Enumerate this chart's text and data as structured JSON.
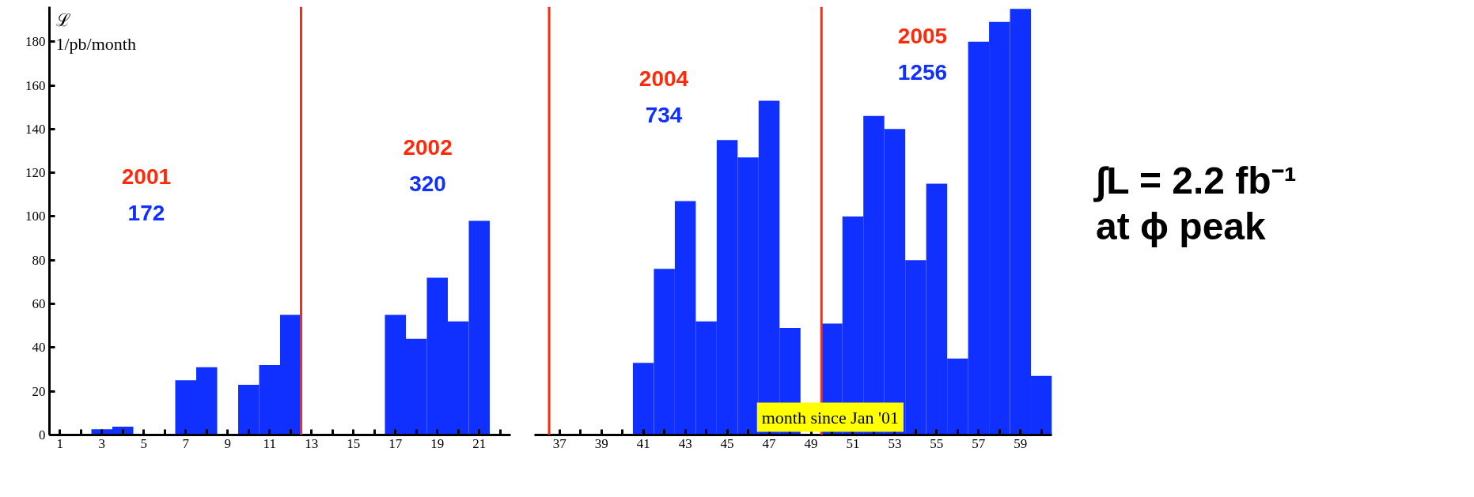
{
  "chart_data": [
    {
      "type": "bar",
      "ylabel": "ℒ\n1/pb/month",
      "x": [
        3,
        4,
        7,
        8,
        10,
        11,
        12,
        17,
        18,
        19,
        20,
        21
      ],
      "series": [
        {
          "color": "#1030ff",
          "values": [
            2.6,
            3.8,
            25,
            31,
            23,
            32,
            55,
            55,
            44,
            72,
            52,
            98
          ]
        }
      ],
      "xlim": [
        0.5,
        22.5
      ],
      "xticks": [
        1,
        {
          "value": 2,
          "label": null
        },
        3,
        {
          "value": 4,
          "label": null
        },
        5,
        {
          "value": 6,
          "label": null
        },
        7,
        {
          "value": 8,
          "label": null
        },
        9,
        {
          "value": 10,
          "label": null
        },
        11,
        {
          "value": 12,
          "label": null
        },
        13,
        {
          "value": 14,
          "label": null
        },
        15,
        {
          "value": 16,
          "label": null
        },
        17,
        {
          "value": 18,
          "label": null
        },
        19,
        {
          "value": 20,
          "label": null
        },
        21,
        {
          "value": 22,
          "label": null
        }
      ],
      "ylim": [
        0,
        196
      ],
      "yticks": [
        0,
        20,
        40,
        60,
        80,
        100,
        120,
        140,
        160,
        180
      ],
      "grid": false,
      "ref_lines": [
        {
          "axis": "x",
          "value": 12.5,
          "color": "#ff2a0a"
        }
      ],
      "annotations": [
        "2001",
        "172",
        "2002",
        "320"
      ]
    },
    {
      "type": "bar",
      "xlabel": "month since Jan '01",
      "x": [
        41,
        42,
        43,
        44,
        45,
        46,
        47,
        48,
        50,
        51,
        52,
        53,
        54,
        55,
        56,
        57,
        58,
        59,
        60
      ],
      "series": [
        {
          "color": "#1030ff",
          "values": [
            33,
            76,
            107,
            52,
            135,
            127,
            153,
            49,
            51,
            100,
            146,
            140,
            80,
            115,
            35,
            180,
            189,
            195,
            27
          ]
        }
      ],
      "xlim": [
        35.8,
        60.5
      ],
      "xticks": [
        37,
        {
          "value": 38,
          "label": null
        },
        39,
        {
          "value": 40,
          "label": null
        },
        41,
        {
          "value": 42,
          "label": null
        },
        43,
        {
          "value": 44,
          "label": null
        },
        45,
        {
          "value": 46,
          "label": null
        },
        47,
        {
          "value": 48,
          "label": null
        },
        49,
        {
          "value": 50,
          "label": null
        },
        51,
        {
          "value": 52,
          "label": null
        },
        53,
        {
          "value": 54,
          "label": null
        },
        55,
        {
          "value": 56,
          "label": null
        },
        57,
        {
          "value": 58,
          "label": null
        },
        59,
        {
          "value": 60,
          "label": null
        }
      ],
      "ylim": [
        0,
        196
      ],
      "tick_labels": "x",
      "grid": false,
      "ref_lines": [
        {
          "axis": "x",
          "value": 36.5,
          "color": "#ff2a0a"
        },
        {
          "axis": "x",
          "value": 49.5,
          "color": "#ff2a0a"
        }
      ],
      "annotations": [
        "2004",
        "734",
        "2005",
        "1256"
      ]
    },
    {
      "type": "other",
      "annotations": [
        "∫L = 2.2 fb⁻¹\nat ϕ  peak"
      ]
    }
  ]
}
